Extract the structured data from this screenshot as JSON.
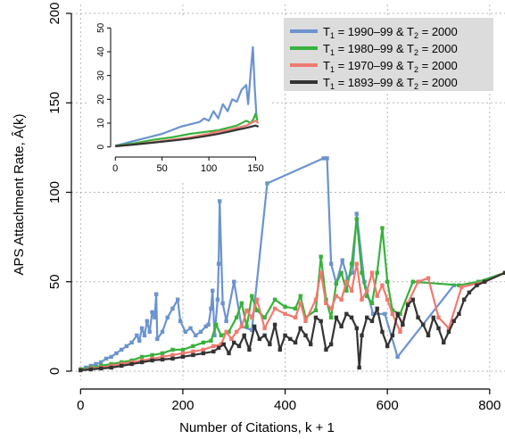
{
  "chart_data": {
    "type": "line",
    "xlabel": "Number of Citations, k + 1",
    "ylabel": "APS Attachment Rate, Â(k)",
    "xlim": [
      -18,
      830
    ],
    "ylim": [
      -5,
      205
    ],
    "x_ticks": [
      0,
      200,
      400,
      600,
      800
    ],
    "y_ticks": [
      0,
      50,
      100,
      150,
      200
    ],
    "grid": true,
    "legend_position": "top-right",
    "legend": [
      {
        "pre": "T",
        "sub1": "1",
        "mid": " = 1990–99 & T",
        "sub2": "2",
        "post": " = 2000",
        "color": "#6b93cf"
      },
      {
        "pre": "T",
        "sub1": "1",
        "mid": " = 1980–99 & T",
        "sub2": "2",
        "post": " = 2000",
        "color": "#38b23c"
      },
      {
        "pre": "T",
        "sub1": "1",
        "mid": " = 1970–99 & T",
        "sub2": "2",
        "post": " = 2000",
        "color": "#f07a70"
      },
      {
        "pre": "T",
        "sub1": "1",
        "mid": " = 1893–99 & T",
        "sub2": "2",
        "post": " = 2000",
        "color": "#333333"
      }
    ],
    "series": [
      {
        "color": "#6b93cf",
        "points": [
          [
            0,
            1
          ],
          [
            10,
            2
          ],
          [
            20,
            3
          ],
          [
            30,
            4
          ],
          [
            40,
            5
          ],
          [
            50,
            7
          ],
          [
            60,
            8
          ],
          [
            70,
            10
          ],
          [
            80,
            12
          ],
          [
            90,
            14
          ],
          [
            100,
            16
          ],
          [
            110,
            20
          ],
          [
            115,
            17
          ],
          [
            120,
            24
          ],
          [
            125,
            20
          ],
          [
            130,
            28
          ],
          [
            135,
            22
          ],
          [
            140,
            33
          ],
          [
            145,
            30
          ],
          [
            148,
            43
          ],
          [
            150,
            18
          ],
          [
            160,
            22
          ],
          [
            170,
            30
          ],
          [
            180,
            35
          ],
          [
            190,
            40
          ],
          [
            195,
            28
          ],
          [
            205,
            22
          ],
          [
            215,
            24
          ],
          [
            225,
            20
          ],
          [
            235,
            22
          ],
          [
            245,
            25
          ],
          [
            250,
            26
          ],
          [
            255,
            35
          ],
          [
            258,
            45
          ],
          [
            262,
            20
          ],
          [
            268,
            40
          ],
          [
            270,
            60
          ],
          [
            272,
            95
          ],
          [
            278,
            38
          ],
          [
            285,
            28
          ],
          [
            300,
            50
          ],
          [
            315,
            25
          ],
          [
            335,
            23
          ],
          [
            365,
            105
          ],
          [
            475,
            119
          ],
          [
            482,
            119
          ],
          [
            490,
            60
          ],
          [
            500,
            49
          ],
          [
            512,
            62
          ],
          [
            522,
            52
          ],
          [
            532,
            55
          ],
          [
            540,
            88
          ],
          [
            555,
            50
          ],
          [
            572,
            32
          ],
          [
            595,
            32
          ],
          [
            620,
            8
          ],
          [
            730,
            48
          ]
        ]
      },
      {
        "color": "#38b23c",
        "points": [
          [
            0,
            1
          ],
          [
            20,
            2
          ],
          [
            40,
            3
          ],
          [
            60,
            4
          ],
          [
            80,
            5
          ],
          [
            100,
            6
          ],
          [
            120,
            8
          ],
          [
            140,
            9
          ],
          [
            160,
            10
          ],
          [
            180,
            12
          ],
          [
            200,
            12
          ],
          [
            220,
            14
          ],
          [
            240,
            16
          ],
          [
            255,
            17
          ],
          [
            265,
            26
          ],
          [
            275,
            20
          ],
          [
            290,
            22
          ],
          [
            305,
            30
          ],
          [
            315,
            38
          ],
          [
            325,
            25
          ],
          [
            335,
            42
          ],
          [
            345,
            34
          ],
          [
            360,
            30
          ],
          [
            380,
            40
          ],
          [
            400,
            36
          ],
          [
            420,
            35
          ],
          [
            430,
            42
          ],
          [
            440,
            30
          ],
          [
            460,
            34
          ],
          [
            470,
            64
          ],
          [
            480,
            40
          ],
          [
            490,
            30
          ],
          [
            500,
            49
          ],
          [
            510,
            55
          ],
          [
            520,
            45
          ],
          [
            530,
            60
          ],
          [
            540,
            85
          ],
          [
            550,
            55
          ],
          [
            560,
            42
          ],
          [
            570,
            38
          ],
          [
            580,
            55
          ],
          [
            590,
            80
          ],
          [
            600,
            50
          ],
          [
            610,
            34
          ],
          [
            625,
            32
          ],
          [
            650,
            50
          ],
          [
            740,
            48
          ],
          [
            778,
            50
          ],
          [
            830,
            55
          ]
        ]
      },
      {
        "color": "#f07a70",
        "points": [
          [
            0,
            0.5
          ],
          [
            20,
            1.5
          ],
          [
            40,
            2
          ],
          [
            60,
            3
          ],
          [
            80,
            4
          ],
          [
            100,
            5
          ],
          [
            120,
            6
          ],
          [
            140,
            7
          ],
          [
            160,
            8
          ],
          [
            180,
            9
          ],
          [
            200,
            10
          ],
          [
            220,
            11
          ],
          [
            240,
            12
          ],
          [
            260,
            14
          ],
          [
            275,
            15
          ],
          [
            285,
            22
          ],
          [
            295,
            18
          ],
          [
            305,
            22
          ],
          [
            315,
            25
          ],
          [
            325,
            34
          ],
          [
            335,
            30
          ],
          [
            345,
            40
          ],
          [
            360,
            24
          ],
          [
            380,
            35
          ],
          [
            400,
            32
          ],
          [
            420,
            30
          ],
          [
            430,
            38
          ],
          [
            440,
            28
          ],
          [
            460,
            40
          ],
          [
            470,
            55
          ],
          [
            480,
            38
          ],
          [
            490,
            35
          ],
          [
            500,
            42
          ],
          [
            510,
            40
          ],
          [
            520,
            50
          ],
          [
            530,
            45
          ],
          [
            540,
            60
          ],
          [
            550,
            40
          ],
          [
            560,
            45
          ],
          [
            570,
            55
          ],
          [
            580,
            42
          ],
          [
            590,
            48
          ],
          [
            600,
            40
          ],
          [
            610,
            32
          ],
          [
            625,
            22
          ],
          [
            640,
            38
          ],
          [
            660,
            50
          ],
          [
            680,
            52
          ],
          [
            700,
            30
          ],
          [
            720,
            24
          ],
          [
            745,
            47
          ],
          [
            790,
            50
          ],
          [
            830,
            55
          ]
        ]
      },
      {
        "color": "#333333",
        "points": [
          [
            0,
            0.5
          ],
          [
            20,
            1
          ],
          [
            40,
            1.5
          ],
          [
            60,
            2
          ],
          [
            80,
            3
          ],
          [
            100,
            4
          ],
          [
            120,
            5
          ],
          [
            140,
            6
          ],
          [
            160,
            6.5
          ],
          [
            180,
            7
          ],
          [
            200,
            8
          ],
          [
            220,
            9
          ],
          [
            240,
            10
          ],
          [
            260,
            11
          ],
          [
            270,
            13
          ],
          [
            280,
            15
          ],
          [
            290,
            10
          ],
          [
            300,
            16
          ],
          [
            310,
            14
          ],
          [
            320,
            20
          ],
          [
            330,
            12
          ],
          [
            340,
            25
          ],
          [
            350,
            18
          ],
          [
            360,
            20
          ],
          [
            370,
            15
          ],
          [
            380,
            26
          ],
          [
            390,
            12
          ],
          [
            400,
            20
          ],
          [
            410,
            18
          ],
          [
            420,
            16
          ],
          [
            430,
            24
          ],
          [
            440,
            20
          ],
          [
            450,
            15
          ],
          [
            460,
            30
          ],
          [
            470,
            28
          ],
          [
            480,
            12
          ],
          [
            490,
            15
          ],
          [
            500,
            30
          ],
          [
            510,
            25
          ],
          [
            520,
            32
          ],
          [
            530,
            30
          ],
          [
            540,
            24
          ],
          [
            545,
            2
          ],
          [
            550,
            20
          ],
          [
            560,
            30
          ],
          [
            570,
            28
          ],
          [
            580,
            35
          ],
          [
            590,
            22
          ],
          [
            600,
            14
          ],
          [
            610,
            20
          ],
          [
            620,
            32
          ],
          [
            630,
            26
          ],
          [
            640,
            37
          ],
          [
            650,
            40
          ],
          [
            660,
            30
          ],
          [
            670,
            26
          ],
          [
            680,
            20
          ],
          [
            690,
            30
          ],
          [
            700,
            24
          ],
          [
            710,
            16
          ],
          [
            720,
            22
          ],
          [
            730,
            28
          ],
          [
            740,
            32
          ],
          [
            750,
            40
          ],
          [
            760,
            44
          ],
          [
            775,
            48
          ],
          [
            790,
            50
          ],
          [
            830,
            55
          ]
        ]
      }
    ],
    "inset": {
      "xlim": [
        -5,
        160
      ],
      "ylim": [
        -2,
        52
      ],
      "x_ticks": [
        0,
        50,
        100,
        150
      ],
      "y_ticks": [
        0,
        10,
        20,
        30,
        40,
        50
      ],
      "series": [
        {
          "color": "#6b93cf",
          "points": [
            [
              0,
              0.5
            ],
            [
              10,
              1.5
            ],
            [
              20,
              2.5
            ],
            [
              30,
              3.5
            ],
            [
              40,
              4.5
            ],
            [
              50,
              5.5
            ],
            [
              60,
              7
            ],
            [
              70,
              8.5
            ],
            [
              80,
              9.5
            ],
            [
              90,
              10.5
            ],
            [
              95,
              12
            ],
            [
              100,
              11
            ],
            [
              105,
              15
            ],
            [
              110,
              12
            ],
            [
              115,
              18
            ],
            [
              120,
              15
            ],
            [
              125,
              20
            ],
            [
              130,
              19
            ],
            [
              135,
              24
            ],
            [
              140,
              26
            ],
            [
              142,
              18
            ],
            [
              145,
              33
            ],
            [
              147,
              42
            ],
            [
              149,
              25
            ],
            [
              151,
              12
            ]
          ]
        },
        {
          "color": "#38b23c",
          "points": [
            [
              0,
              0.5
            ],
            [
              20,
              1.5
            ],
            [
              40,
              3
            ],
            [
              60,
              4
            ],
            [
              80,
              5.5
            ],
            [
              100,
              6.5
            ],
            [
              110,
              7
            ],
            [
              120,
              8
            ],
            [
              130,
              9
            ],
            [
              140,
              11
            ],
            [
              145,
              10
            ],
            [
              148,
              12
            ],
            [
              150,
              14
            ],
            [
              152,
              11
            ]
          ]
        },
        {
          "color": "#f07a70",
          "points": [
            [
              0,
              0.3
            ],
            [
              20,
              1
            ],
            [
              40,
              2
            ],
            [
              60,
              3
            ],
            [
              80,
              4
            ],
            [
              100,
              5.5
            ],
            [
              110,
              6.5
            ],
            [
              120,
              7
            ],
            [
              130,
              8
            ],
            [
              140,
              9
            ],
            [
              145,
              10
            ],
            [
              150,
              11
            ],
            [
              153,
              10
            ]
          ]
        },
        {
          "color": "#333333",
          "points": [
            [
              0,
              0.3
            ],
            [
              20,
              1
            ],
            [
              40,
              1.8
            ],
            [
              60,
              2.6
            ],
            [
              80,
              3.5
            ],
            [
              100,
              4.8
            ],
            [
              110,
              5.5
            ],
            [
              120,
              6.3
            ],
            [
              130,
              7.2
            ],
            [
              140,
              8
            ],
            [
              145,
              8.5
            ],
            [
              150,
              9
            ],
            [
              153,
              8.5
            ]
          ]
        }
      ]
    }
  }
}
